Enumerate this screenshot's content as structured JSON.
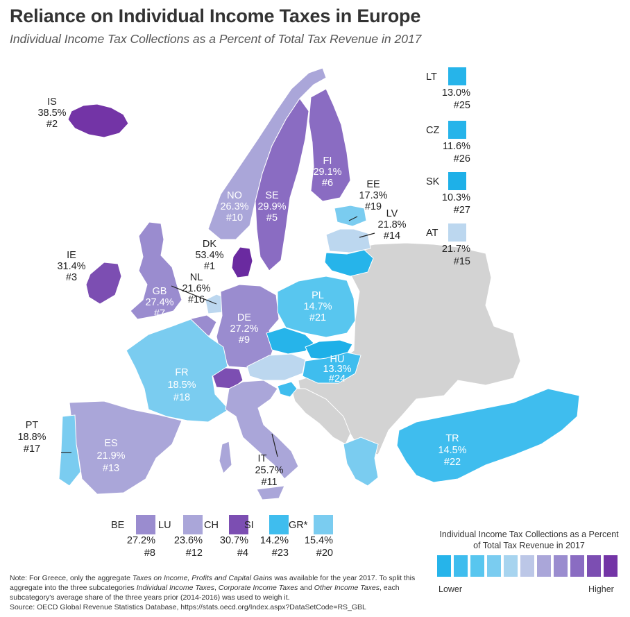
{
  "title": "Reliance on Individual Income Taxes in Europe",
  "subtitle": "Individual Income Tax Collections as a Percent of Total Tax Revenue in 2017",
  "colors": {
    "non_oecd": "#d3d3d3",
    "scale": [
      "#26b4ea",
      "#3fbdee",
      "#58c6ef",
      "#7accf0",
      "#a7d4ef",
      "#bcc7e7",
      "#aaa6d9",
      "#9a8ccf",
      "#8a6cc2",
      "#7c4eb2",
      "#7334a6"
    ]
  },
  "countries": {
    "IS": {
      "code": "IS",
      "value": "38.5%",
      "rank": "#2",
      "color": "#7334a6"
    },
    "NO": {
      "code": "NO",
      "value": "26.3%",
      "rank": "#10",
      "color": "#aaa6d9"
    },
    "SE": {
      "code": "SE",
      "value": "29.9%",
      "rank": "#5",
      "color": "#8a6cc2"
    },
    "FI": {
      "code": "FI",
      "value": "29.1%",
      "rank": "#6",
      "color": "#8a6cc2"
    },
    "EE": {
      "code": "EE",
      "value": "17.3%",
      "rank": "#19",
      "color": "#7accf0"
    },
    "LV": {
      "code": "LV",
      "value": "21.8%",
      "rank": "#14",
      "color": "#bcd7ef"
    },
    "LT": {
      "code": "LT",
      "value": "13.0%",
      "rank": "#25",
      "color": "#26b4ea"
    },
    "DK": {
      "code": "DK",
      "value": "53.4%",
      "rank": "#1",
      "color": "#6a2aa0"
    },
    "IE": {
      "code": "IE",
      "value": "31.4%",
      "rank": "#3",
      "color": "#7c4eb2"
    },
    "GB": {
      "code": "GB",
      "value": "27.4%",
      "rank": "#7",
      "color": "#9a8ccf"
    },
    "NL": {
      "code": "NL",
      "value": "21.6%",
      "rank": "#16",
      "color": "#bcd7ef"
    },
    "DE": {
      "code": "DE",
      "value": "27.2%",
      "rank": "#9",
      "color": "#9a8ccf"
    },
    "PL": {
      "code": "PL",
      "value": "14.7%",
      "rank": "#21",
      "color": "#58c6ef"
    },
    "CZ": {
      "code": "CZ",
      "value": "11.6%",
      "rank": "#26",
      "color": "#26b4ea"
    },
    "SK": {
      "code": "SK",
      "value": "10.3%",
      "rank": "#27",
      "color": "#1eb0e8"
    },
    "AT": {
      "code": "AT",
      "value": "21.7%",
      "rank": "#15",
      "color": "#bcd7ef"
    },
    "HU": {
      "code": "HU",
      "value": "13.3%",
      "rank": "#24",
      "color": "#3fbdee"
    },
    "SI": {
      "code": "SI",
      "value": "14.2%",
      "rank": "#23",
      "color": "#3fbdee"
    },
    "FR": {
      "code": "FR",
      "value": "18.5%",
      "rank": "#18",
      "color": "#7accf0"
    },
    "CH": {
      "code": "CH",
      "value": "30.7%",
      "rank": "#4",
      "color": "#7c4eb2"
    },
    "BE": {
      "code": "BE",
      "value": "27.2%",
      "rank": "#8",
      "color": "#9a8ccf"
    },
    "LU": {
      "code": "LU",
      "value": "23.6%",
      "rank": "#12",
      "color": "#aaa6d9"
    },
    "IT": {
      "code": "IT",
      "value": "25.7%",
      "rank": "#11",
      "color": "#aaa6d9"
    },
    "ES": {
      "code": "ES",
      "value": "21.9%",
      "rank": "#13",
      "color": "#aaa6d9"
    },
    "PT": {
      "code": "PT",
      "value": "18.8%",
      "rank": "#17",
      "color": "#7accf0"
    },
    "GR": {
      "code": "GR*",
      "value": "15.4%",
      "rank": "#20",
      "color": "#7accf0"
    },
    "TR": {
      "code": "TR",
      "value": "14.5%",
      "rank": "#22",
      "color": "#3fbdee"
    }
  },
  "note": {
    "part1": "Note: For Greece, only the aggregate ",
    "em1": "Taxes on Income, Profits and Capital Gains",
    "part2": " was available for the year 2017. To split this aggregate into the three subcategories ",
    "em2": "Individual Income Taxes",
    "part3": ", ",
    "em3": "Corporate Income Taxes",
    "part4": " and ",
    "em4": "Other Income Taxes",
    "part5": ", each subcategory's average share of the three years prior (2014-2016) was used to weigh it.",
    "source": "Source: OECD Global Revenue Statistics Database, https://stats.oecd.org/Index.aspx?DataSetCode=RS_GBL"
  },
  "legend": {
    "title": "Individual Income Tax Collections as a Percent of Total Tax Revenue in 2017",
    "low": "Lower",
    "high": "Higher"
  }
}
